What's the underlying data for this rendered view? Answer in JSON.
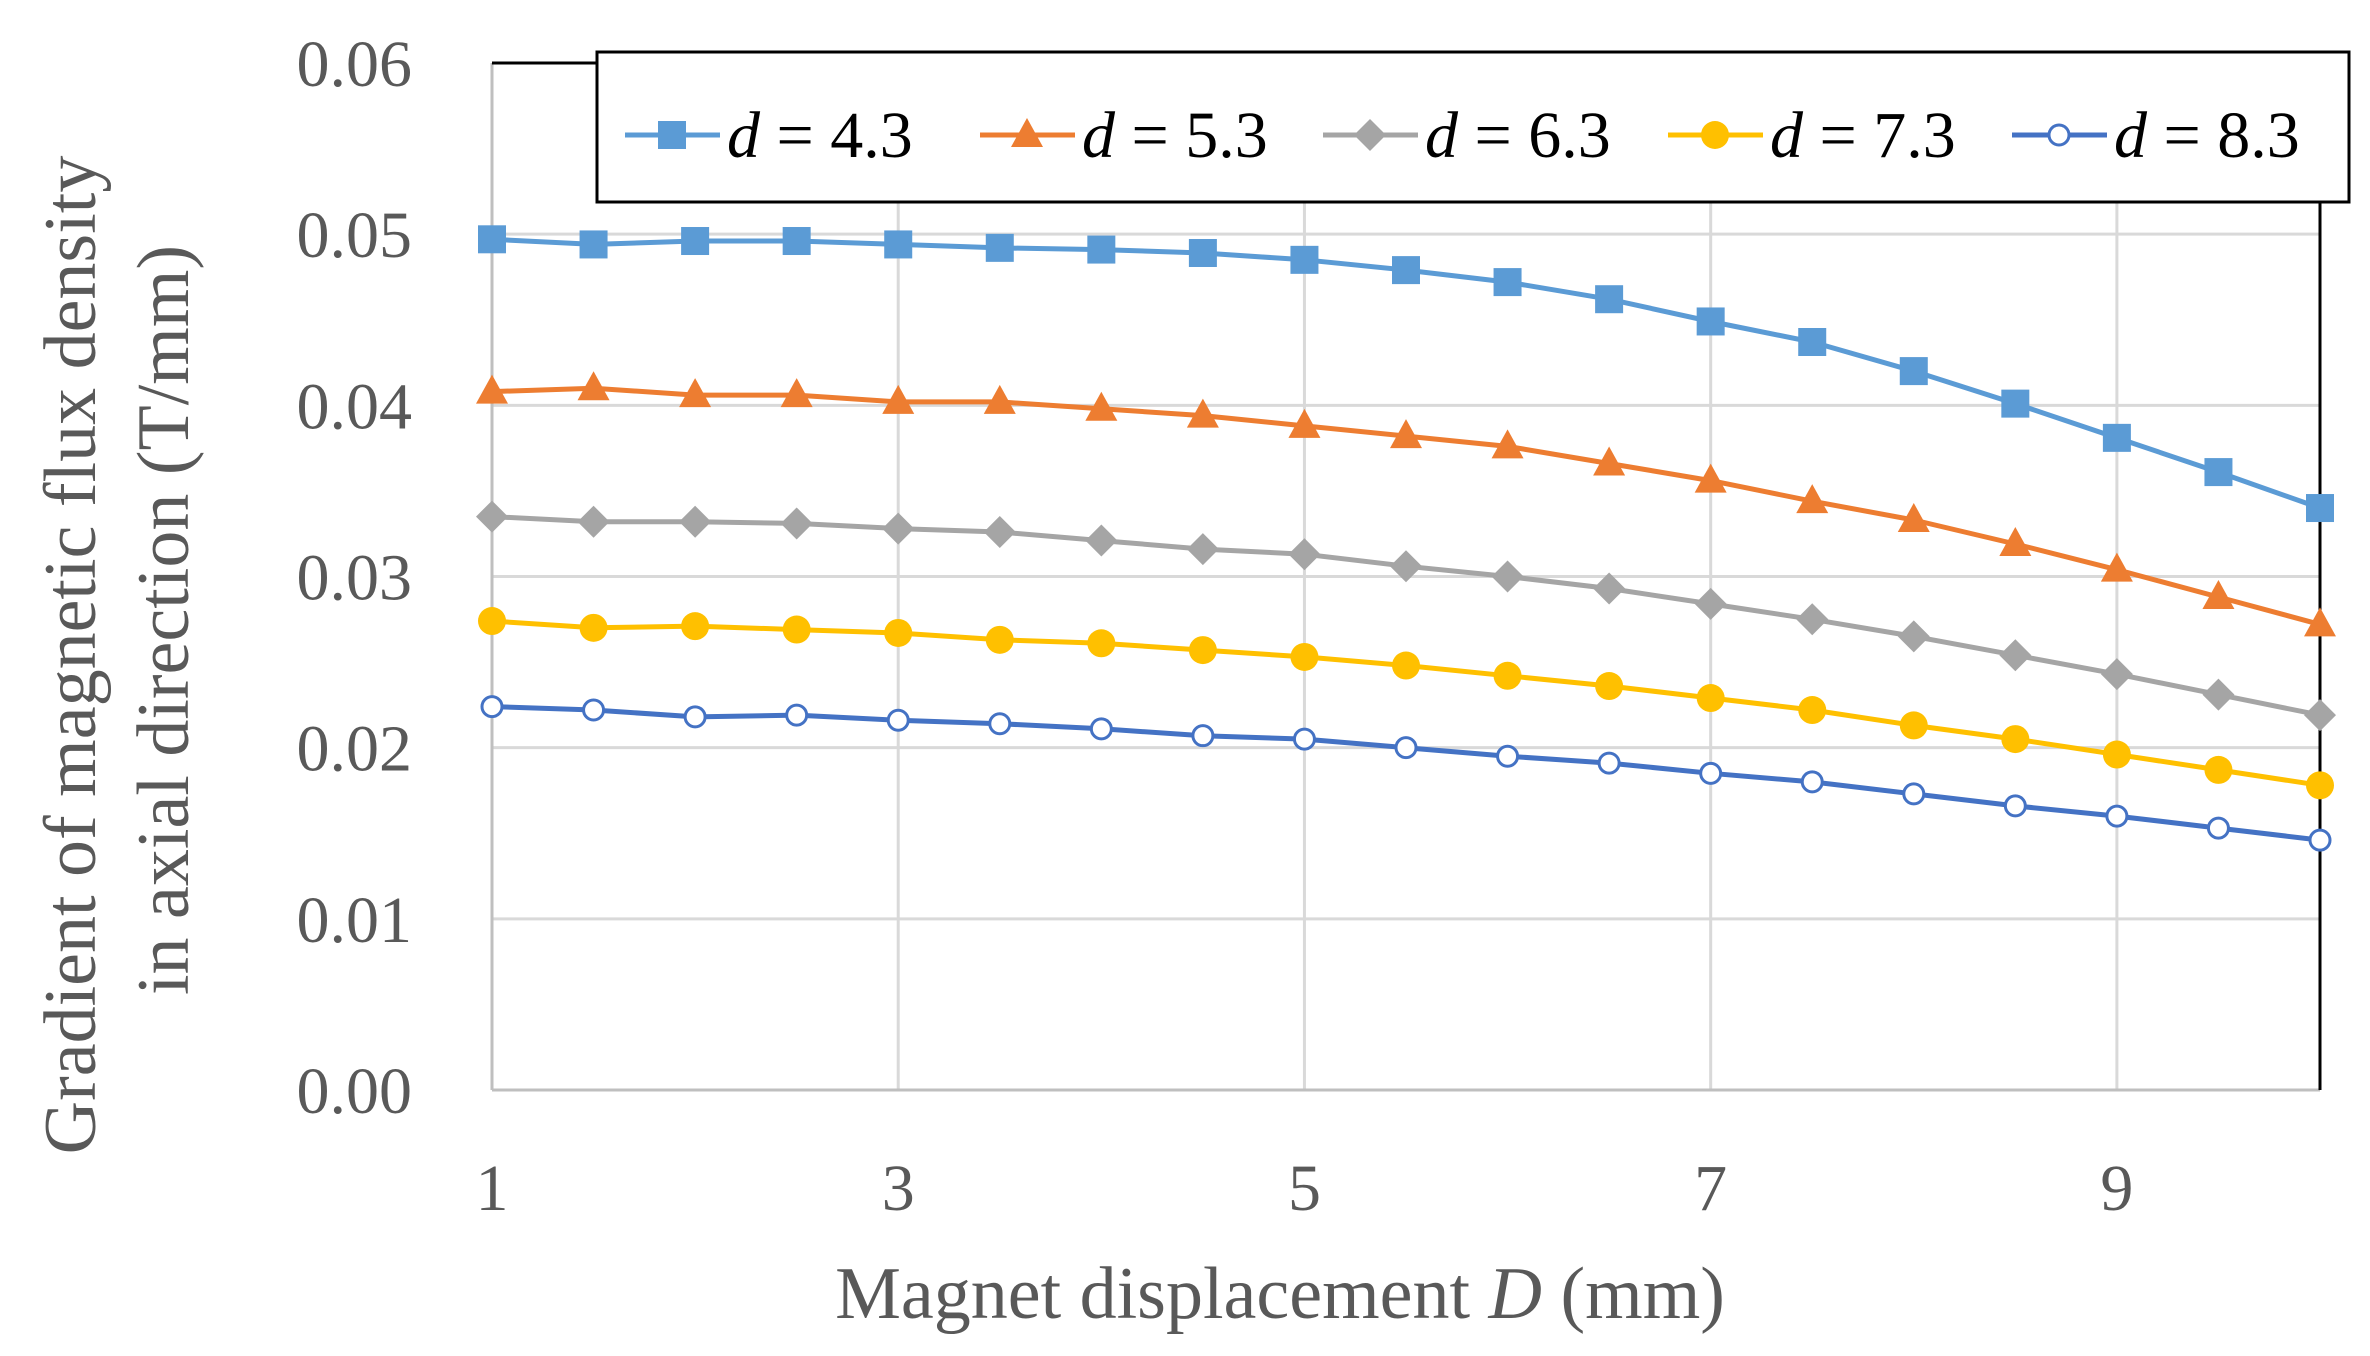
{
  "chart_data": {
    "type": "line",
    "title": "",
    "xlabel": "Magnet displacement D (mm)",
    "xlabel_parts": [
      "Magnet displacement ",
      "D",
      " (mm)"
    ],
    "ylabel": "Gradient of magnetic flux density in axial direction (T/mm)",
    "ylabel_line1": "Gradient of magnetic flux density",
    "ylabel_line2": "in axial direction (T/mm)",
    "xlim": [
      1,
      10
    ],
    "ylim": [
      0,
      0.06
    ],
    "xticks": [
      1,
      3,
      5,
      7,
      9
    ],
    "xtick_labels": [
      "1",
      "3",
      "5",
      "7",
      "9"
    ],
    "yticks": [
      0,
      0.01,
      0.02,
      0.03,
      0.04,
      0.05,
      0.06
    ],
    "ytick_labels": [
      "0.00",
      "0.01",
      "0.02",
      "0.03",
      "0.04",
      "0.05",
      "0.06"
    ],
    "grid": true,
    "legend_position": "top",
    "x": [
      1,
      1.5,
      2,
      2.5,
      3,
      3.5,
      4,
      4.5,
      5,
      5.5,
      6,
      6.5,
      7,
      7.5,
      8,
      8.5,
      9,
      9.5,
      10
    ],
    "series": [
      {
        "name": "d = 4.3",
        "var": "d",
        "value_label": " = 4.3",
        "color": "#5b9bd5",
        "marker": "square",
        "values": [
          0.0497,
          0.0494,
          0.0496,
          0.0496,
          0.0494,
          0.0492,
          0.0491,
          0.0489,
          0.0485,
          0.0479,
          0.0472,
          0.0462,
          0.0449,
          0.0437,
          0.042,
          0.0401,
          0.0381,
          0.0361,
          0.034
        ]
      },
      {
        "name": "d = 5.3",
        "var": "d",
        "value_label": " = 5.3",
        "color": "#ed7d31",
        "marker": "triangle",
        "values": [
          0.0408,
          0.041,
          0.0406,
          0.0406,
          0.0402,
          0.0402,
          0.0398,
          0.0394,
          0.0388,
          0.0382,
          0.0376,
          0.0366,
          0.0356,
          0.0344,
          0.0333,
          0.0319,
          0.0304,
          0.0288,
          0.0272
        ]
      },
      {
        "name": "d = 6.3",
        "var": "d",
        "value_label": " = 6.3",
        "color": "#a5a5a5",
        "marker": "diamond",
        "values": [
          0.0335,
          0.0332,
          0.0332,
          0.0331,
          0.0328,
          0.0326,
          0.0321,
          0.0316,
          0.0313,
          0.0306,
          0.03,
          0.0293,
          0.0284,
          0.0275,
          0.0265,
          0.0254,
          0.0243,
          0.0231,
          0.0219
        ]
      },
      {
        "name": "d = 7.3",
        "var": "d",
        "value_label": " = 7.3",
        "color": "#ffc000",
        "marker": "circle",
        "values": [
          0.0274,
          0.027,
          0.0271,
          0.0269,
          0.0267,
          0.0263,
          0.0261,
          0.0257,
          0.0253,
          0.0248,
          0.0242,
          0.0236,
          0.0229,
          0.0222,
          0.0213,
          0.0205,
          0.0196,
          0.0187,
          0.0178
        ]
      },
      {
        "name": "d = 8.3",
        "var": "d",
        "value_label": " = 8.3",
        "color": "#4472c4",
        "marker": "open-circle",
        "values": [
          0.0224,
          0.0222,
          0.0218,
          0.0219,
          0.0216,
          0.0214,
          0.0211,
          0.0207,
          0.0205,
          0.02,
          0.0195,
          0.0191,
          0.0185,
          0.018,
          0.0173,
          0.0166,
          0.016,
          0.0153,
          0.0146
        ]
      }
    ]
  }
}
